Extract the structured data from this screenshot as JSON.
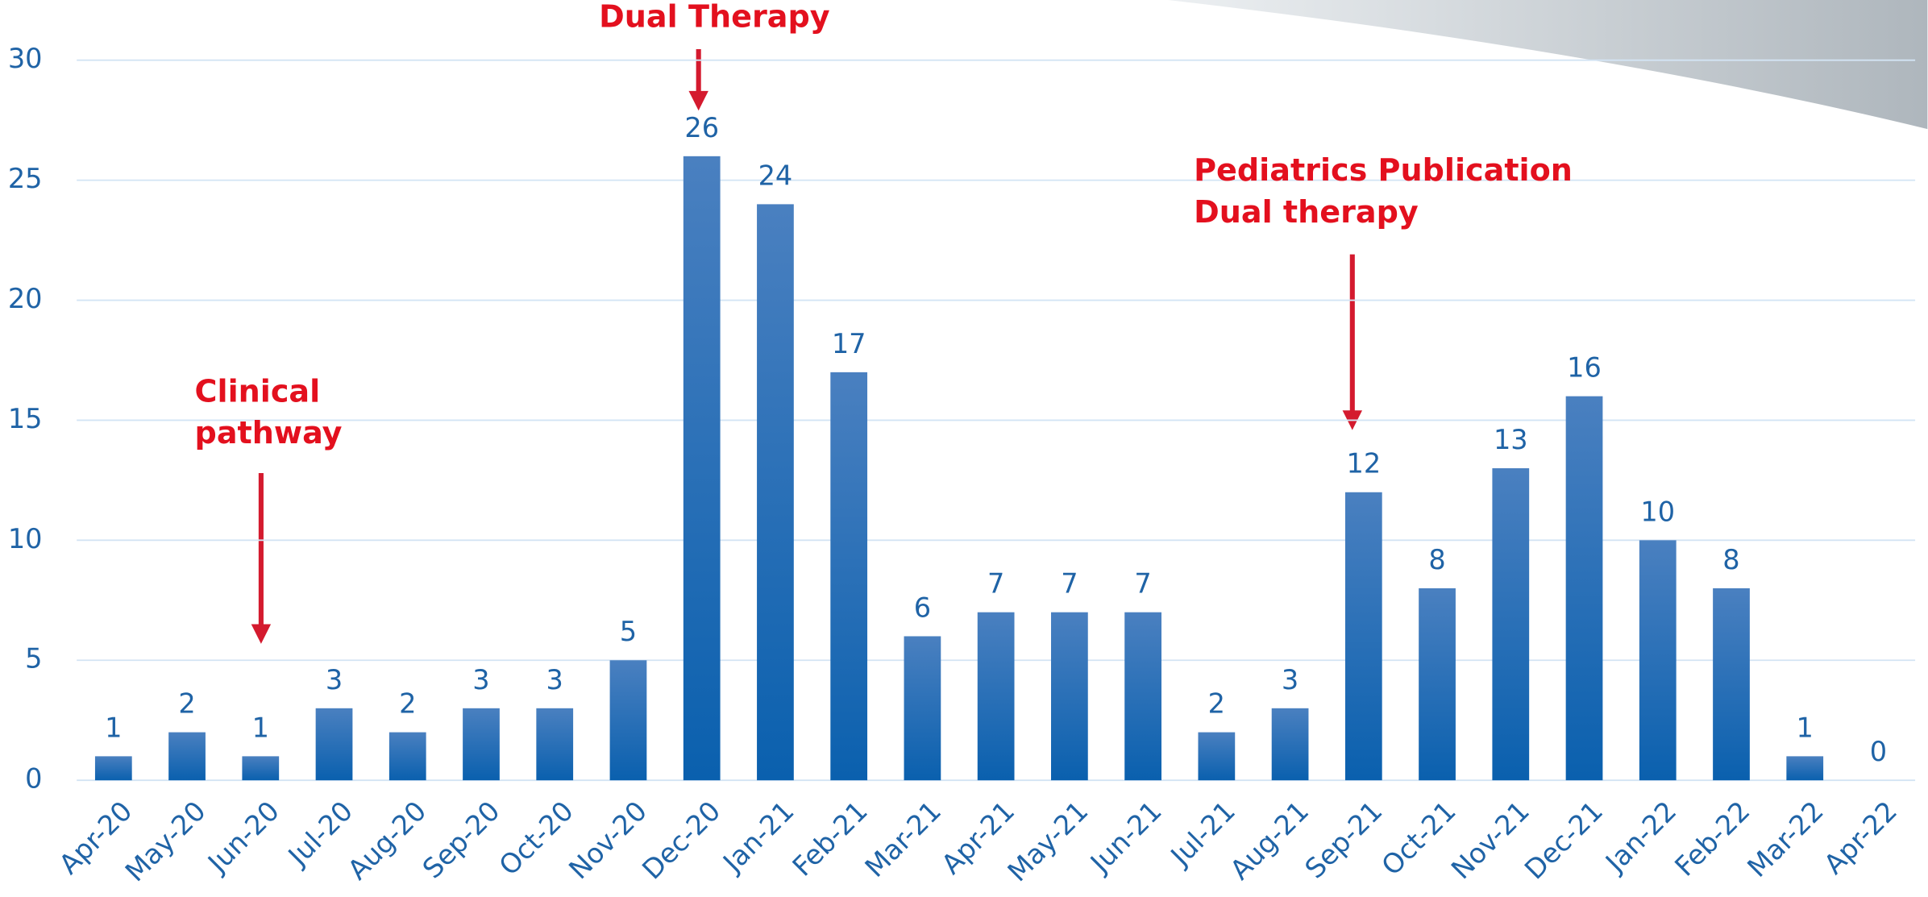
{
  "chart_data": {
    "type": "bar",
    "categories": [
      "Apr-20",
      "May-20",
      "Jun-20",
      "Jul-20",
      "Aug-20",
      "Sep-20",
      "Oct-20",
      "Nov-20",
      "Dec-20",
      "Jan-21",
      "Feb-21",
      "Mar-21",
      "Apr-21",
      "May-21",
      "Jun-21",
      "Jul-21",
      "Aug-21",
      "Sep-21",
      "Oct-21",
      "Nov-21",
      "Dec-21",
      "Jan-22",
      "Feb-22",
      "Mar-22",
      "Apr-22"
    ],
    "values": [
      1,
      2,
      1,
      3,
      2,
      3,
      3,
      5,
      26,
      24,
      17,
      6,
      7,
      7,
      7,
      2,
      3,
      12,
      8,
      13,
      16,
      10,
      8,
      1,
      0
    ],
    "color": "#0d62b0",
    "ylim": [
      0,
      30
    ],
    "yticks": [
      0,
      5,
      10,
      15,
      20,
      25,
      30
    ],
    "grid": true,
    "annotations": [
      [
        "Dual Therapy"
      ],
      [
        "Clinical",
        "pathway"
      ],
      [
        "Pediatrics Publication",
        "Dual therapy"
      ]
    ]
  }
}
